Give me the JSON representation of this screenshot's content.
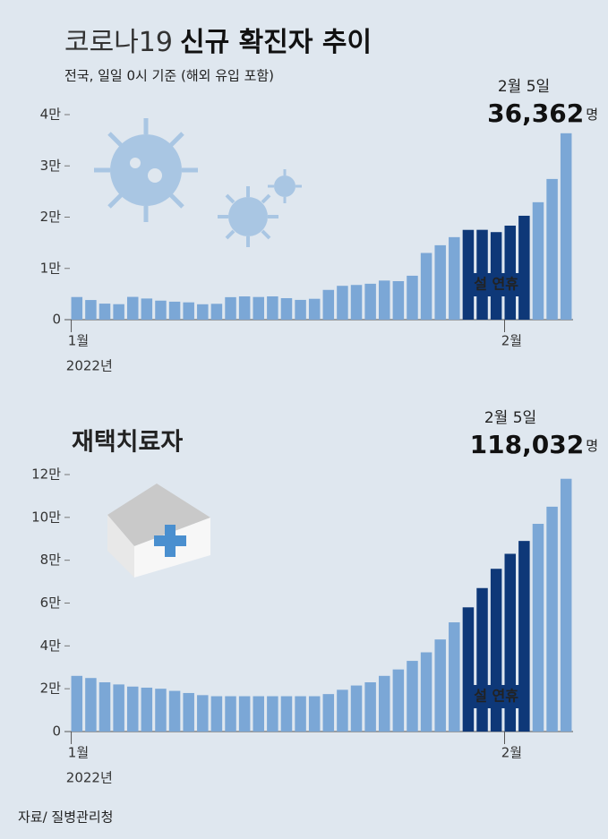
{
  "chart_data": [
    {
      "type": "bar",
      "title": [
        "코로나19",
        "신규 확진자 추이"
      ],
      "subtitle": "전국, 일일 0시 기준 (해외 유입 포함)",
      "categories": [
        "1월",
        null,
        null,
        null,
        null,
        null,
        null,
        null,
        null,
        null,
        null,
        null,
        null,
        null,
        null,
        null,
        null,
        null,
        null,
        null,
        null,
        null,
        null,
        null,
        null,
        null,
        null,
        null,
        null,
        null,
        null,
        "2월",
        null,
        null,
        null,
        null
      ],
      "x_sublabel": "2022년",
      "values": [
        4415,
        3832,
        3129,
        3022,
        4443,
        4125,
        3714,
        3510,
        3376,
        3005,
        3094,
        4388,
        4539,
        4422,
        4542,
        4194,
        3857,
        4071,
        5805,
        6601,
        6767,
        7008,
        7628,
        7513,
        8571,
        13012,
        14518,
        16096,
        17514,
        17528,
        17079,
        18342,
        20270,
        22907,
        27443,
        36362
      ],
      "colors": [
        "#7ba7d6",
        "#7ba7d6",
        "#7ba7d6",
        "#7ba7d6",
        "#7ba7d6",
        "#7ba7d6",
        "#7ba7d6",
        "#7ba7d6",
        "#7ba7d6",
        "#7ba7d6",
        "#7ba7d6",
        "#7ba7d6",
        "#7ba7d6",
        "#7ba7d6",
        "#7ba7d6",
        "#7ba7d6",
        "#7ba7d6",
        "#7ba7d6",
        "#7ba7d6",
        "#7ba7d6",
        "#7ba7d6",
        "#7ba7d6",
        "#7ba7d6",
        "#7ba7d6",
        "#7ba7d6",
        "#7ba7d6",
        "#7ba7d6",
        "#7ba7d6",
        "#0e3878",
        "#0e3878",
        "#0e3878",
        "#0e3878",
        "#0e3878",
        "#7ba7d6",
        "#7ba7d6",
        "#7ba7d6"
      ],
      "highlight_label": "설 연휴",
      "annotation": {
        "date": "2월 5일",
        "value_label": "36,362",
        "unit": "명"
      },
      "ylim": [
        0,
        40000
      ],
      "yticks": [
        0,
        {
          "value": 10000,
          "label": "1만"
        },
        {
          "value": 20000,
          "label": "2만"
        },
        {
          "value": 30000,
          "label": "3만"
        },
        {
          "value": 40000,
          "label": "4만"
        }
      ],
      "grid": false
    },
    {
      "type": "bar",
      "title": "재택치료자",
      "categories": [
        "1월",
        null,
        null,
        null,
        null,
        null,
        null,
        null,
        null,
        null,
        null,
        null,
        null,
        null,
        null,
        null,
        null,
        null,
        null,
        null,
        null,
        null,
        null,
        null,
        null,
        null,
        null,
        null,
        null,
        null,
        null,
        "2월",
        null,
        null,
        null,
        null
      ],
      "x_sublabel": "2022년",
      "values": [
        26000,
        25000,
        23000,
        22000,
        21000,
        20500,
        20000,
        19000,
        18000,
        17000,
        16500,
        16500,
        16500,
        16500,
        16500,
        16500,
        16500,
        16500,
        17500,
        19500,
        21500,
        23000,
        26000,
        29000,
        33000,
        37000,
        43000,
        51000,
        58000,
        67000,
        76000,
        83000,
        89000,
        97000,
        105000,
        118032
      ],
      "colors": [
        "#7ba7d6",
        "#7ba7d6",
        "#7ba7d6",
        "#7ba7d6",
        "#7ba7d6",
        "#7ba7d6",
        "#7ba7d6",
        "#7ba7d6",
        "#7ba7d6",
        "#7ba7d6",
        "#7ba7d6",
        "#7ba7d6",
        "#7ba7d6",
        "#7ba7d6",
        "#7ba7d6",
        "#7ba7d6",
        "#7ba7d6",
        "#7ba7d6",
        "#7ba7d6",
        "#7ba7d6",
        "#7ba7d6",
        "#7ba7d6",
        "#7ba7d6",
        "#7ba7d6",
        "#7ba7d6",
        "#7ba7d6",
        "#7ba7d6",
        "#7ba7d6",
        "#0e3878",
        "#0e3878",
        "#0e3878",
        "#0e3878",
        "#0e3878",
        "#7ba7d6",
        "#7ba7d6",
        "#7ba7d6"
      ],
      "highlight_label": "설 연휴",
      "annotation": {
        "date": "2월 5일",
        "value_label": "118,032",
        "unit": "명"
      },
      "ylim": [
        0,
        120000
      ],
      "yticks": [
        0,
        {
          "value": 20000,
          "label": "2만"
        },
        {
          "value": 40000,
          "label": "4만"
        },
        {
          "value": 60000,
          "label": "6만"
        },
        {
          "value": 80000,
          "label": "8만"
        },
        {
          "value": 100000,
          "label": "10만"
        },
        {
          "value": 120000,
          "label": "12만"
        }
      ],
      "grid": false
    }
  ],
  "source": "자료/ 질병관리청"
}
